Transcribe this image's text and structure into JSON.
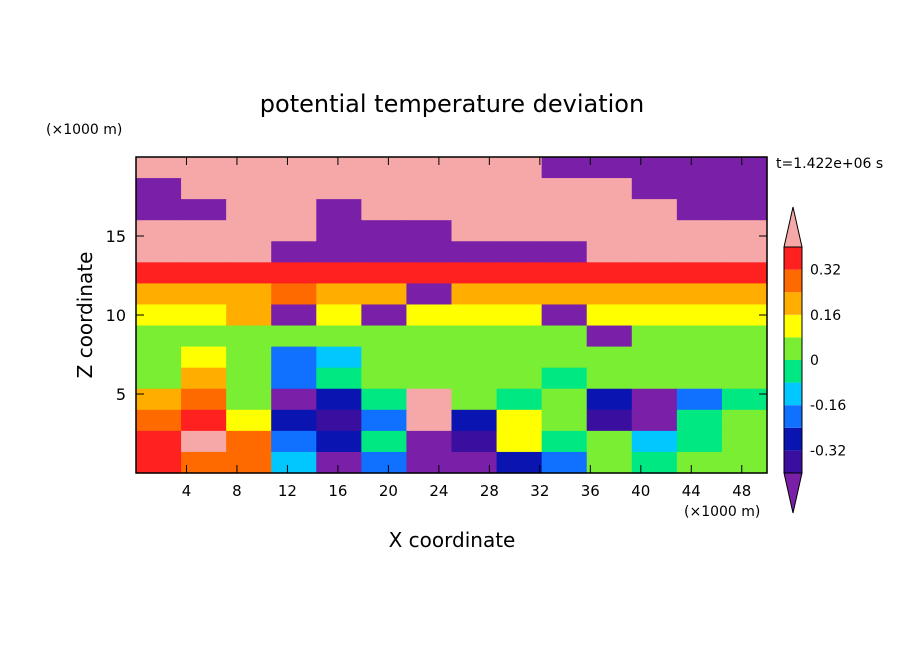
{
  "chart_data": {
    "type": "heatmap",
    "title": "potential temperature deviation",
    "xlabel": "X coordinate",
    "ylabel": "Z coordinate",
    "x_unit": "(×1000 m)",
    "y_unit": "(×1000 m)",
    "time_label": "t=1.422e+06 s",
    "xlim": [
      0,
      50
    ],
    "ylim": [
      0,
      20
    ],
    "x_ticks": [
      4,
      8,
      12,
      16,
      20,
      24,
      28,
      32,
      36,
      40,
      44,
      48
    ],
    "y_ticks": [
      5,
      10,
      15
    ],
    "colorbar": {
      "levels": [
        -0.4,
        -0.32,
        -0.24,
        -0.16,
        -0.08,
        0,
        0.08,
        0.16,
        0.24,
        0.32,
        0.4
      ],
      "colors": [
        "#7a1fa8",
        "#3a0fa0",
        "#0a14b0",
        "#1070ff",
        "#00c8ff",
        "#00e882",
        "#7aee32",
        "#ffff00",
        "#ffae00",
        "#ff6a00",
        "#ff2020",
        "#f6a8a8"
      ],
      "labels": [
        "-0.32",
        "-0.16",
        "0",
        "0.16",
        "0.32"
      ],
      "label_values": [
        -0.32,
        -0.16,
        0,
        0.16,
        0.32
      ]
    },
    "field": [
      [
        0.45,
        0.45,
        0.45,
        0.45,
        0.45,
        0.45,
        0.45,
        0.45,
        0.45,
        -0.45,
        -0.45,
        -0.45,
        -0.45,
        -0.45
      ],
      [
        -0.45,
        0.45,
        0.45,
        0.45,
        0.45,
        0.45,
        0.45,
        0.45,
        0.45,
        0.45,
        0.45,
        -0.45,
        -0.45,
        -0.45
      ],
      [
        -0.45,
        -0.45,
        0.45,
        0.45,
        -0.45,
        0.45,
        0.45,
        0.45,
        0.45,
        0.45,
        0.45,
        0.45,
        -0.45,
        -0.45
      ],
      [
        0.45,
        0.45,
        0.45,
        0.45,
        -0.45,
        -0.45,
        -0.45,
        0.45,
        0.45,
        0.45,
        0.45,
        0.45,
        0.45,
        0.45
      ],
      [
        0.45,
        0.45,
        0.45,
        -0.45,
        -0.45,
        -0.45,
        -0.45,
        -0.45,
        -0.45,
        -0.45,
        0.45,
        0.45,
        0.45,
        0.45
      ],
      [
        0.36,
        0.36,
        0.36,
        0.36,
        0.36,
        0.36,
        0.36,
        0.36,
        0.36,
        0.36,
        0.36,
        0.36,
        0.36,
        0.36
      ],
      [
        0.2,
        0.2,
        0.2,
        0.28,
        0.2,
        0.2,
        -0.45,
        0.2,
        0.2,
        0.2,
        0.2,
        0.2,
        0.2,
        0.2
      ],
      [
        0.12,
        0.12,
        0.2,
        -0.45,
        0.12,
        -0.45,
        0.12,
        0.12,
        0.12,
        -0.45,
        0.12,
        0.12,
        0.12,
        0.12
      ],
      [
        0.06,
        0.06,
        0.06,
        0.06,
        0.06,
        0.06,
        0.06,
        0.06,
        0.06,
        0.06,
        -0.45,
        0.06,
        0.06,
        0.06
      ],
      [
        0.0,
        0.12,
        0.0,
        -0.2,
        -0.1,
        0.0,
        0.06,
        0.0,
        0.0,
        0.0,
        0.0,
        0.06,
        0.0,
        0.0
      ],
      [
        0.0,
        0.16,
        0.06,
        -0.2,
        -0.05,
        0.0,
        0.06,
        0.0,
        0.0,
        -0.05,
        0.0,
        0.0,
        0.0,
        0.0
      ],
      [
        0.2,
        0.28,
        0.06,
        -0.45,
        -0.32,
        -0.05,
        0.45,
        0.06,
        -0.05,
        0.0,
        -0.32,
        -0.45,
        -0.2,
        -0.05
      ],
      [
        0.28,
        0.36,
        0.12,
        -0.32,
        -0.4,
        -0.2,
        0.45,
        -0.32,
        0.12,
        0.06,
        -0.4,
        -0.45,
        -0.05,
        0.0
      ],
      [
        0.36,
        0.45,
        0.28,
        -0.2,
        -0.32,
        -0.05,
        -0.45,
        -0.4,
        0.12,
        -0.05,
        0.0,
        -0.1,
        -0.05,
        0.06
      ],
      [
        0.36,
        0.28,
        0.28,
        -0.12,
        -0.45,
        -0.2,
        -0.45,
        -0.45,
        -0.32,
        -0.2,
        0.0,
        -0.05,
        0.06,
        0.0
      ]
    ]
  }
}
